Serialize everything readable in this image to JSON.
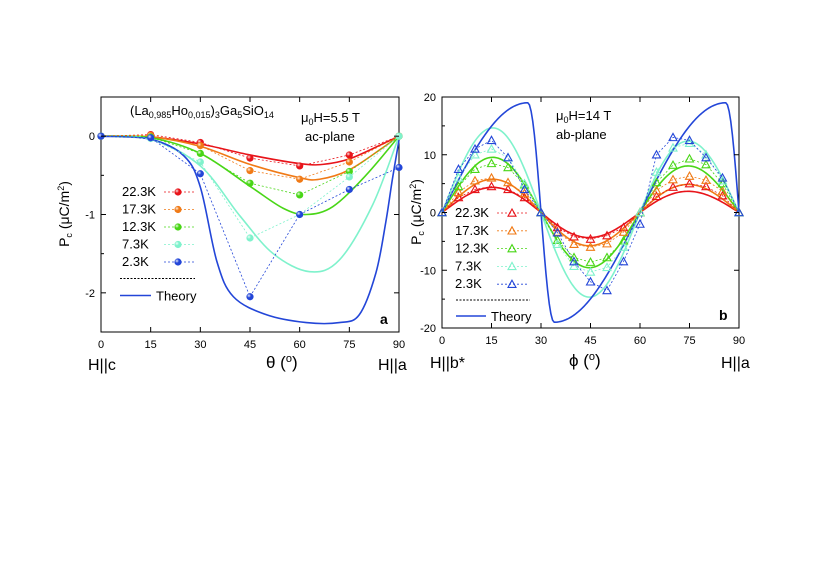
{
  "chart_data": [
    {
      "type": "scatter",
      "panel_label": "a",
      "title": "(La0.985Ho0.015)3Ga5SiO14",
      "field_label": "5.5 T",
      "plane_label": "ac-plane",
      "xlabel": "θ (°)",
      "ylabel": "Pc (μC/m²)",
      "xlim": [
        0,
        90
      ],
      "ylim": [
        -2.5,
        0.5
      ],
      "xticks": [
        0,
        15,
        30,
        45,
        60,
        75,
        90
      ],
      "yticks": [
        -2,
        -1,
        0
      ],
      "x_end_labels": [
        "H||c",
        "H||a"
      ],
      "series": [
        {
          "name": "22.3K",
          "color": "#e8141a",
          "x": [
            0,
            15,
            30,
            45,
            60,
            75,
            90
          ],
          "y": [
            0,
            0.02,
            -0.08,
            -0.28,
            -0.38,
            -0.24,
            0
          ],
          "theory": [
            [
              0,
              0
            ],
            [
              15,
              -0.01
            ],
            [
              30,
              -0.1
            ],
            [
              45,
              -0.24
            ],
            [
              60,
              -0.35
            ],
            [
              67,
              -0.36
            ],
            [
              75,
              -0.29
            ],
            [
              85,
              -0.1
            ],
            [
              90,
              0
            ]
          ]
        },
        {
          "name": "17.3K",
          "color": "#f07a16",
          "x": [
            0,
            15,
            30,
            45,
            60,
            75,
            90
          ],
          "y": [
            0,
            0.01,
            -0.12,
            -0.44,
            -0.55,
            -0.33,
            0
          ],
          "theory": [
            [
              0,
              0
            ],
            [
              15,
              -0.01
            ],
            [
              30,
              -0.13
            ],
            [
              45,
              -0.36
            ],
            [
              60,
              -0.53
            ],
            [
              66,
              -0.55
            ],
            [
              75,
              -0.43
            ],
            [
              85,
              -0.15
            ],
            [
              90,
              0
            ]
          ]
        },
        {
          "name": "12.3K",
          "color": "#49d617",
          "x": [
            0,
            15,
            30,
            45,
            60,
            75,
            90
          ],
          "y": [
            0,
            -0.01,
            -0.22,
            -0.6,
            -0.75,
            -0.45,
            0
          ],
          "theory": [
            [
              0,
              0
            ],
            [
              15,
              -0.02
            ],
            [
              30,
              -0.22
            ],
            [
              45,
              -0.64
            ],
            [
              55,
              -0.92
            ],
            [
              62,
              -1.0
            ],
            [
              70,
              -0.9
            ],
            [
              80,
              -0.5
            ],
            [
              90,
              0
            ]
          ]
        },
        {
          "name": "7.3K",
          "color": "#7ff2cc",
          "x": [
            0,
            15,
            30,
            45,
            60,
            75,
            90
          ],
          "y": [
            0,
            -0.03,
            -0.33,
            -1.3,
            -1.0,
            -0.52,
            0
          ],
          "theory": [
            [
              0,
              0
            ],
            [
              15,
              -0.04
            ],
            [
              30,
              -0.38
            ],
            [
              42,
              -1.02
            ],
            [
              52,
              -1.5
            ],
            [
              63,
              -1.73
            ],
            [
              72,
              -1.58
            ],
            [
              82,
              -0.88
            ],
            [
              90,
              0
            ]
          ]
        },
        {
          "name": "2.3K",
          "color": "#2346d8",
          "x": [
            0,
            15,
            30,
            45,
            60,
            75,
            90
          ],
          "y": [
            0,
            -0.02,
            -0.48,
            -2.05,
            -1.0,
            -0.68,
            -0.4
          ],
          "theory": [
            [
              0,
              0
            ],
            [
              15,
              -0.04
            ],
            [
              25,
              -0.25
            ],
            [
              30,
              -0.65
            ],
            [
              35,
              -1.6
            ],
            [
              40,
              -2.05
            ],
            [
              50,
              -2.28
            ],
            [
              62,
              -2.38
            ],
            [
              72,
              -2.38
            ],
            [
              78,
              -2.28
            ],
            [
              83,
              -1.75
            ],
            [
              86,
              -1.1
            ],
            [
              88,
              -0.55
            ],
            [
              90,
              -0.05
            ]
          ]
        }
      ],
      "theory_label": "Theory",
      "theory_color": "#2346d8",
      "marker": "sphere",
      "legend_position": "left-bottom"
    },
    {
      "type": "scatter",
      "panel_label": "b",
      "field_label": "14 T",
      "plane_label": "ab-plane",
      "xlabel": "φ (°)",
      "ylabel": "Pc (μC/m²)",
      "xlim": [
        0,
        90
      ],
      "ylim": [
        -20,
        20
      ],
      "xticks": [
        0,
        15,
        30,
        45,
        60,
        75,
        90
      ],
      "yticks": [
        -20,
        -10,
        0,
        10,
        20
      ],
      "x_end_labels": [
        "H||b*",
        "H||a"
      ],
      "series": [
        {
          "name": "22.3K",
          "color": "#e8141a",
          "x": [
            0,
            5,
            10,
            15,
            20,
            25,
            30,
            35,
            40,
            45,
            50,
            55,
            60,
            65,
            70,
            75,
            80,
            85,
            90
          ],
          "y": [
            0,
            2.6,
            4.0,
            4.5,
            4.0,
            2.6,
            0,
            -2.6,
            -4.2,
            -4.6,
            -4.0,
            -2.6,
            0,
            2.8,
            4.4,
            5.0,
            4.5,
            2.9,
            0
          ],
          "theory": "sine",
          "amp": 4.0,
          "phase": 0
        },
        {
          "name": "17.3K",
          "color": "#f07a16",
          "x": [
            0,
            5,
            10,
            15,
            20,
            25,
            30,
            35,
            40,
            45,
            50,
            55,
            60,
            65,
            70,
            75,
            80,
            85,
            90
          ],
          "y": [
            0,
            3.5,
            5.5,
            6.0,
            5.2,
            3.3,
            0,
            -3.4,
            -5.5,
            -6.0,
            -5.4,
            -3.4,
            0,
            3.8,
            5.7,
            6.3,
            5.6,
            3.7,
            0
          ],
          "theory": "sine",
          "amp": 5.3,
          "phase": 0
        },
        {
          "name": "12.3K",
          "color": "#49d617",
          "x": [
            0,
            5,
            10,
            15,
            20,
            25,
            30,
            35,
            40,
            45,
            50,
            55,
            60,
            65,
            70,
            75,
            80,
            85,
            90
          ],
          "y": [
            0,
            4.5,
            7.5,
            8.5,
            7.8,
            4.8,
            0,
            -4.8,
            -7.8,
            -8.6,
            -7.8,
            -4.9,
            0,
            5.2,
            8.2,
            9.3,
            8.3,
            5.0,
            0
          ],
          "theory": "sine",
          "amp": 8.8,
          "phase": 0
        },
        {
          "name": "7.3K",
          "color": "#7ff2cc",
          "x": [
            0,
            5,
            10,
            15,
            20,
            25,
            30,
            35,
            40,
            45,
            50,
            55,
            60,
            65,
            70,
            75,
            80,
            85,
            90
          ],
          "y": [
            0,
            6.0,
            10.0,
            11.0,
            9.5,
            5.0,
            0,
            -5.5,
            -9.3,
            -10.3,
            -9.5,
            -6.0,
            0,
            7.0,
            11.2,
            12.0,
            10.0,
            5.5,
            0
          ],
          "theory": "sine",
          "amp": 13.5,
          "phase": 0
        },
        {
          "name": "2.3K",
          "color": "#2346d8",
          "x": [
            0,
            5,
            10,
            15,
            20,
            25,
            30,
            35,
            40,
            45,
            50,
            55,
            60,
            65,
            70,
            75,
            80,
            85,
            90
          ],
          "y": [
            0,
            7.5,
            11.0,
            12.5,
            9.5,
            4.0,
            0,
            -3.5,
            -8.5,
            -12.0,
            -13.5,
            -8.5,
            -2.0,
            10.0,
            13.0,
            12.5,
            9.5,
            6.0,
            0
          ],
          "theory": "skewed",
          "amp": 19.0,
          "phase": 0
        }
      ],
      "theory_label": "Theory",
      "theory_color": "#2346d8",
      "marker": "open-triangle",
      "legend_position": "left-bottom"
    }
  ]
}
